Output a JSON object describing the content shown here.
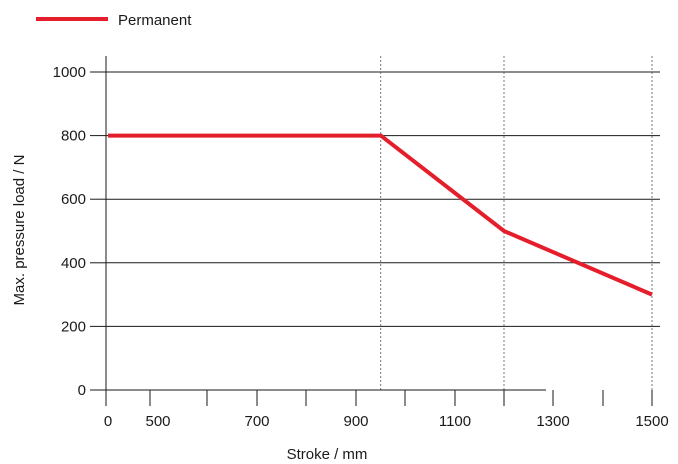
{
  "chart_data": {
    "type": "line",
    "title": "",
    "xlabel": "Stroke / mm",
    "ylabel": "Max. pressure load / N",
    "x_tick_labels": [
      {
        "label": "0",
        "x": 0
      },
      {
        "label": "500",
        "x": 500
      },
      {
        "label": "700",
        "x": 700
      },
      {
        "label": "900",
        "x": 900
      },
      {
        "label": "1100",
        "x": 1100
      },
      {
        "label": "1300",
        "x": 1300
      },
      {
        "label": "1500",
        "x": 1500
      }
    ],
    "y_ticks": [
      0,
      200,
      400,
      600,
      800,
      1000
    ],
    "ylim": [
      0,
      1000
    ],
    "grid": "horizontal solid lines at y ticks; dotted vertical lines at x = 950, 1200, 1500",
    "vertical_dotted_lines_x": [
      950,
      1200,
      1500
    ],
    "legend": {
      "placement": "top-left",
      "entries": [
        "Permanent"
      ]
    },
    "series": [
      {
        "name": "Permanent",
        "color": "#e41e2b",
        "points": [
          {
            "x": 0,
            "y": 800
          },
          {
            "x": 950,
            "y": 800
          },
          {
            "x": 1200,
            "y": 500
          },
          {
            "x": 1500,
            "y": 300
          }
        ]
      }
    ]
  }
}
